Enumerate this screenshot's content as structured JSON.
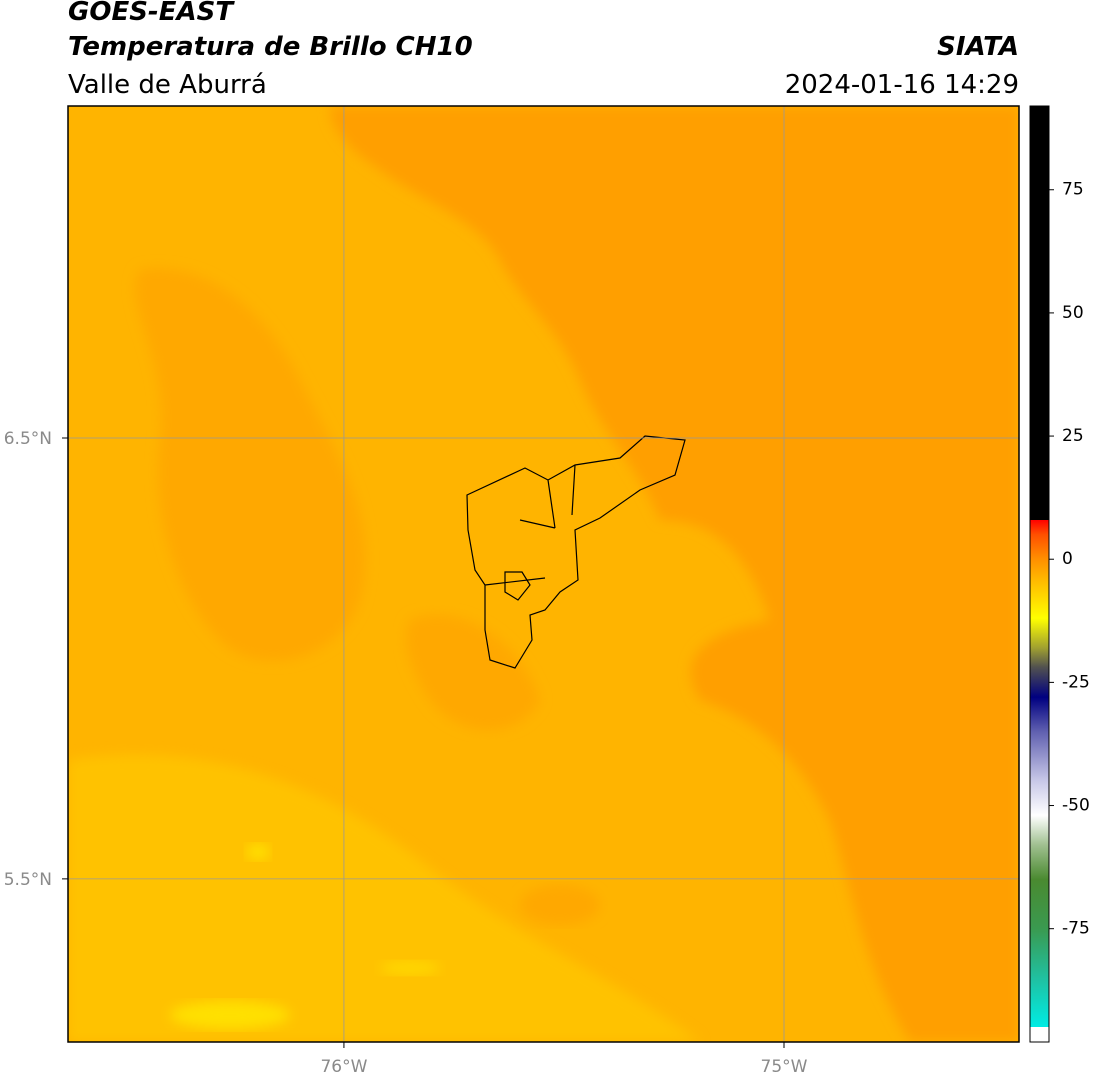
{
  "header": {
    "title": "GOES-EAST",
    "subtitle": "Temperatura de Brillo CH10",
    "region": "Valle de Aburrá",
    "source": "SIATA",
    "datetime": "2024-01-16 14:29"
  },
  "map": {
    "xlim": [
      -76.627,
      -74.466
    ],
    "ylim": [
      5.13,
      7.253
    ],
    "xticks": [
      {
        "value": -76,
        "label": "76°W"
      },
      {
        "value": -75,
        "label": "75°W"
      }
    ],
    "yticks": [
      {
        "value": 6.5,
        "label": "6.5°N"
      },
      {
        "value": 5.5,
        "label": "5.5°N"
      }
    ],
    "grid": true
  },
  "colorbar": {
    "lim": [
      -98,
      92
    ],
    "ticks": [
      75,
      50,
      25,
      0,
      -25,
      -50,
      -75
    ],
    "colormap": [
      {
        "value": -98,
        "color": "#ffffff"
      },
      {
        "value": -95,
        "color": "#ffffff"
      },
      {
        "value": -95,
        "color": "#00ece4"
      },
      {
        "value": -85,
        "color": "#20c0a0"
      },
      {
        "value": -75,
        "color": "#3a9a50"
      },
      {
        "value": -65,
        "color": "#4a8a30"
      },
      {
        "value": -58,
        "color": "#a0c090"
      },
      {
        "value": -52,
        "color": "#ffffff"
      },
      {
        "value": -45,
        "color": "#c8c8e8"
      },
      {
        "value": -35,
        "color": "#6060b0"
      },
      {
        "value": -28,
        "color": "#000080"
      },
      {
        "value": -22,
        "color": "#505050"
      },
      {
        "value": -18,
        "color": "#a0a030"
      },
      {
        "value": -12,
        "color": "#ffff00"
      },
      {
        "value": -5,
        "color": "#ffc000"
      },
      {
        "value": 0,
        "color": "#ff9000"
      },
      {
        "value": 5,
        "color": "#ff5000"
      },
      {
        "value": 8,
        "color": "#ff0000"
      },
      {
        "value": 8,
        "color": "#000000"
      },
      {
        "value": 92,
        "color": "#000000"
      }
    ]
  }
}
